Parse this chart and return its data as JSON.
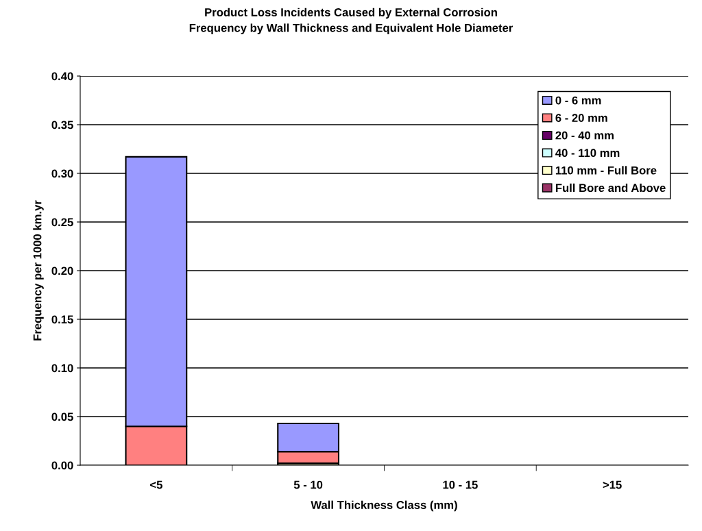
{
  "chart_data": {
    "type": "bar",
    "title": "Product Loss Incidents Caused by External Corrosion\nFrequency by Wall Thickness and Equivalent Hole Diameter",
    "xlabel": "Wall Thickness Class (mm)",
    "ylabel": "Frequency per 1000 km.yr",
    "categories": [
      "<5",
      "5 - 10",
      "10 - 15",
      ">15"
    ],
    "stacked": true,
    "series": [
      {
        "name": "Full Bore and Above",
        "color": "#993366",
        "values": [
          0,
          0,
          0,
          0
        ]
      },
      {
        "name": "110 mm - Full Bore",
        "color": "#ffffcc",
        "values": [
          0,
          0.002,
          0,
          0
        ]
      },
      {
        "name": "40 - 110 mm",
        "color": "#ccffff",
        "values": [
          0,
          0,
          0,
          0
        ]
      },
      {
        "name": "20 - 40 mm",
        "color": "#660066",
        "values": [
          0,
          0,
          0,
          0
        ]
      },
      {
        "name": "6 - 20 mm",
        "color": "#ff8080",
        "values": [
          0.04,
          0.012,
          0,
          0
        ]
      },
      {
        "name": "0 - 6 mm",
        "color": "#9999ff",
        "values": [
          0.277,
          0.029,
          0,
          0
        ]
      }
    ],
    "ylim": [
      0,
      0.4
    ],
    "yticks": [
      {
        "value": 0,
        "label": "0.00"
      },
      {
        "value": 0.05,
        "label": "0.05"
      },
      {
        "value": 0.1,
        "label": "0.10"
      },
      {
        "value": 0.15,
        "label": "0.15"
      },
      {
        "value": 0.2,
        "label": "0.20"
      },
      {
        "value": 0.25,
        "label": "0.25"
      },
      {
        "value": 0.3,
        "label": "0.30"
      },
      {
        "value": 0.35,
        "label": "0.35"
      },
      {
        "value": 0.4,
        "label": "0.40"
      }
    ],
    "grid": "y",
    "legend": "top right"
  }
}
